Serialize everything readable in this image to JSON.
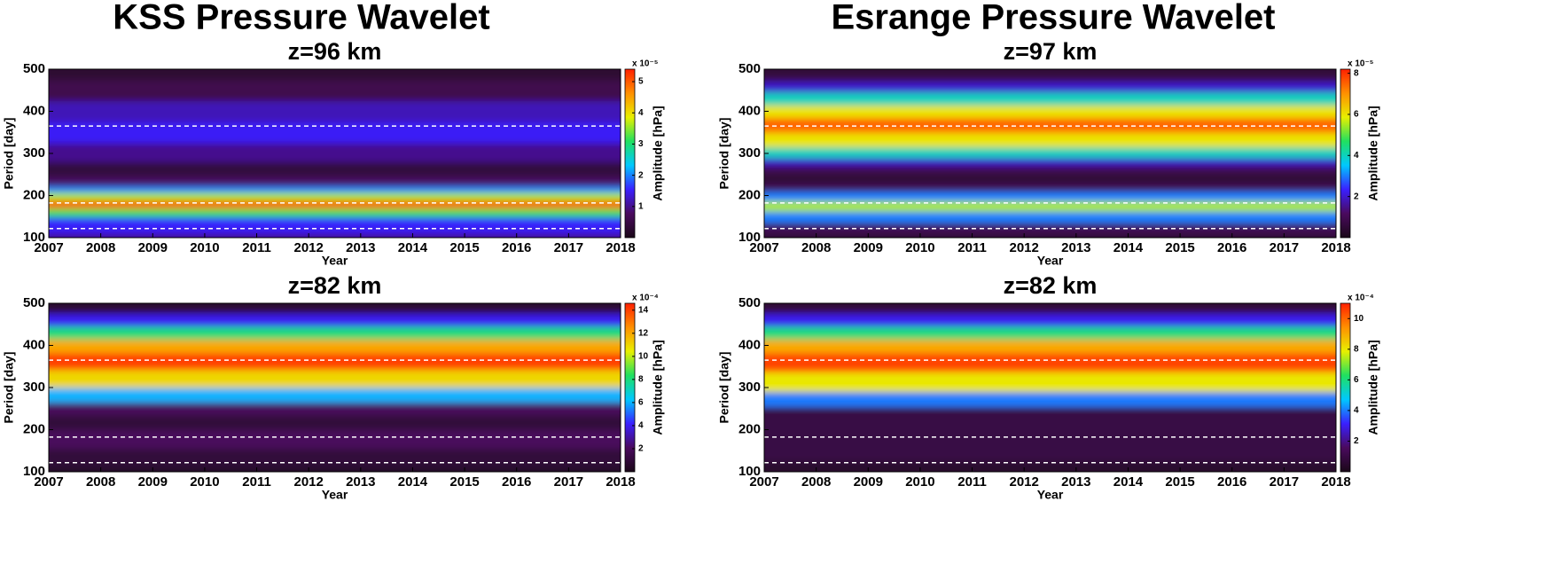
{
  "titles": [
    "KSS Pressure Wavelet",
    "Esrange Pressure Wavelet"
  ],
  "chart_data": [
    {
      "type": "heatmap",
      "title": "z=96 km",
      "xlabel": "Year",
      "ylabel": "Period [day]",
      "colorbar_label": "Amplitude [hPa]",
      "colorbar_scale": "x 10⁻⁵",
      "xlim": [
        2007,
        2018
      ],
      "xticks": [
        2007,
        2008,
        2009,
        2010,
        2011,
        2012,
        2013,
        2014,
        2015,
        2016,
        2017,
        2018
      ],
      "ylim": [
        100,
        500
      ],
      "yticks": [
        100,
        200,
        300,
        400,
        500
      ],
      "clim": [
        0,
        5.4
      ],
      "cticks": [
        1,
        2,
        3,
        4,
        5
      ],
      "periods": [
        100,
        120,
        140,
        160,
        180,
        200,
        215,
        230,
        260,
        300,
        350,
        400,
        450,
        500
      ],
      "values": [
        1.0,
        1.5,
        1.6,
        3.2,
        5.0,
        3.6,
        2.0,
        0.8,
        0.4,
        1.0,
        1.5,
        1.2,
        0.6,
        0.3
      ],
      "reference_lines": [
        365,
        182.5,
        121.7
      ]
    },
    {
      "type": "heatmap",
      "title": "z=97 km",
      "xlabel": "Year",
      "ylabel": "Period [day]",
      "colorbar_label": "Amplitude [hPa]",
      "colorbar_scale": "x 10⁻⁵",
      "xlim": [
        2007,
        2018
      ],
      "xticks": [
        2007,
        2008,
        2009,
        2010,
        2011,
        2012,
        2013,
        2014,
        2015,
        2016,
        2017,
        2018
      ],
      "ylim": [
        100,
        500
      ],
      "yticks": [
        100,
        200,
        300,
        400,
        500
      ],
      "clim": [
        0,
        8.2
      ],
      "cticks": [
        2,
        4,
        6,
        8
      ],
      "periods": [
        100,
        120,
        150,
        175,
        200,
        220,
        240,
        265,
        280,
        300,
        330,
        370,
        400,
        430,
        460,
        480,
        500
      ],
      "values": [
        0.5,
        1.0,
        3.0,
        5.5,
        3.0,
        1.0,
        0.5,
        1.0,
        2.0,
        4.0,
        6.0,
        7.5,
        6.0,
        4.0,
        2.0,
        0.8,
        0.5
      ],
      "reference_lines": [
        365,
        182.5,
        121.7
      ]
    },
    {
      "type": "heatmap",
      "title": "z=82 km",
      "xlabel": "Year",
      "ylabel": "Period [day]",
      "colorbar_label": "Amplitude [hPa]",
      "colorbar_scale": "x 10⁻⁴",
      "xlim": [
        2007,
        2018
      ],
      "xticks": [
        2007,
        2008,
        2009,
        2010,
        2011,
        2012,
        2013,
        2014,
        2015,
        2016,
        2017,
        2018
      ],
      "ylim": [
        100,
        500
      ],
      "yticks": [
        100,
        200,
        300,
        400,
        500
      ],
      "clim": [
        0,
        14.6
      ],
      "cticks": [
        2,
        4,
        6,
        8,
        10,
        12,
        14
      ],
      "periods": [
        100,
        130,
        180,
        220,
        250,
        280,
        320,
        365,
        400,
        430,
        460,
        490,
        500
      ],
      "values": [
        0.5,
        1.0,
        2.0,
        1.0,
        2.0,
        6.0,
        11.0,
        14.0,
        12.0,
        8.0,
        4.0,
        1.0,
        0.5
      ],
      "reference_lines": [
        365,
        182.5,
        121.7
      ]
    },
    {
      "type": "heatmap",
      "title": "z=82 km",
      "xlabel": "Year",
      "ylabel": "Period [day]",
      "colorbar_label": "Amplitude [hPa]",
      "colorbar_scale": "x 10⁻⁴",
      "xlim": [
        2007,
        2018
      ],
      "xticks": [
        2007,
        2008,
        2009,
        2010,
        2011,
        2012,
        2013,
        2014,
        2015,
        2016,
        2017,
        2018
      ],
      "ylim": [
        100,
        500
      ],
      "yticks": [
        100,
        200,
        300,
        400,
        500
      ],
      "clim": [
        0,
        11
      ],
      "cticks": [
        2,
        4,
        6,
        8,
        10
      ],
      "periods": [
        100,
        150,
        200,
        240,
        270,
        310,
        365,
        400,
        430,
        460,
        490,
        500
      ],
      "values": [
        0.5,
        1.0,
        1.0,
        1.0,
        4.0,
        8.0,
        10.5,
        9.0,
        6.0,
        3.0,
        1.0,
        0.5
      ],
      "reference_lines": [
        365,
        182.5,
        121.7
      ]
    }
  ],
  "colormap": [
    "#1a0818",
    "#4a0a5e",
    "#3a20ff",
    "#00c8ff",
    "#20e060",
    "#e8f000",
    "#ff9000",
    "#ff2000"
  ]
}
